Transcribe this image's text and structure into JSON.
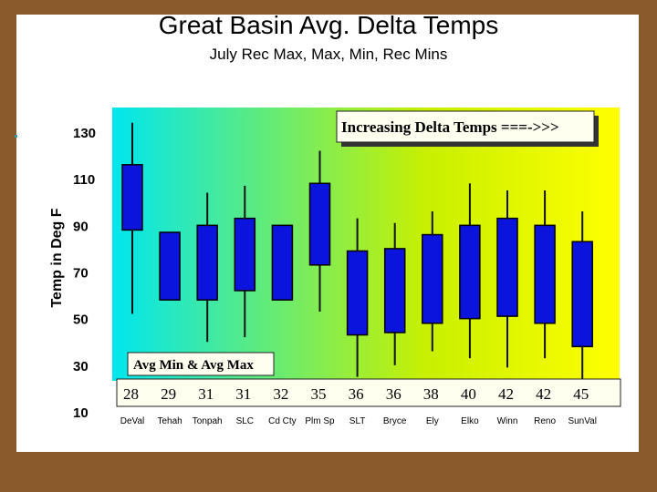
{
  "title": "Great Basin Avg. Delta Temps",
  "subtitle": "July Rec Max, Max, Min, Rec Mins",
  "annotations": {
    "top_banner": "Increasing Delta Temps ===->>>",
    "bottom_banner": "Avg Min & Avg Max"
  },
  "colors": {
    "box_fill": "#0a14dc",
    "gradient_left": "#00e6ef",
    "gradient_mid": "#c8f000",
    "gradient_right": "#ffff00",
    "banner_bg": "#fffff0"
  },
  "chart_data": {
    "type": "candlestick",
    "title": "Great Basin Avg. Delta Temps",
    "subtitle": "July Rec Max, Max, Min, Rec Mins",
    "xlabel": "",
    "ylabel": "Temp in Deg F",
    "ylim": [
      10,
      140
    ],
    "yticks": [
      130,
      110,
      90,
      70,
      50,
      30,
      10
    ],
    "categories": [
      "DeVal",
      "Tehah",
      "Tonpah",
      "SLC",
      "Cd Cty",
      "Plm Sp",
      "SLT",
      "Bryce",
      "Ely",
      "Elko",
      "Winn",
      "Reno",
      "SunVal"
    ],
    "rec_max": [
      134,
      87,
      104,
      107,
      90,
      122,
      93,
      91,
      96,
      108,
      105,
      105,
      96
    ],
    "avg_max": [
      116,
      87,
      90,
      93,
      90,
      108,
      79,
      80,
      86,
      90,
      93,
      90,
      83
    ],
    "avg_min": [
      88,
      58,
      58,
      62,
      58,
      73,
      43,
      44,
      48,
      50,
      51,
      48,
      38
    ],
    "rec_min": [
      52,
      58,
      40,
      42,
      58,
      53,
      25,
      30,
      36,
      33,
      29,
      33,
      20
    ],
    "delta": [
      28,
      29,
      31,
      31,
      32,
      35,
      36,
      36,
      38,
      40,
      42,
      42,
      45
    ]
  }
}
